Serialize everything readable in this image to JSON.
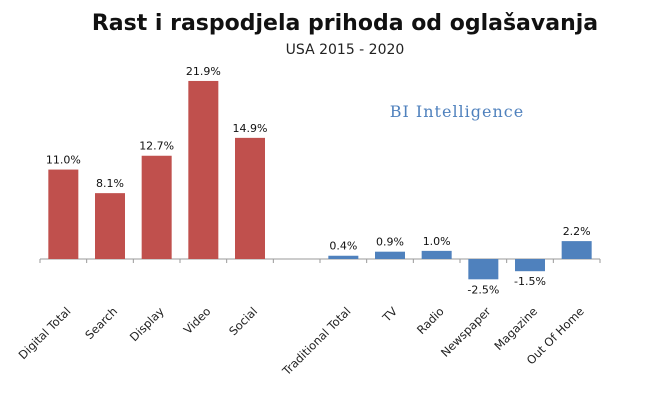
{
  "chart_data": {
    "type": "bar",
    "title": "Rast i raspodjela prihoda od oglašavanja",
    "subtitle": "USA 2015 - 2020",
    "brand": "BI Intelligence",
    "xlabel": "",
    "ylabel": "",
    "ylim": [
      -3.5,
      23
    ],
    "grid": false,
    "legend": "none",
    "colors": {
      "digital": "#c0504d",
      "traditional": "#4f81bd",
      "brand": "#4f81bd"
    },
    "categories": [
      "Digital Total",
      "Search",
      "Display",
      "Video",
      "Social",
      "",
      "Traditional Total",
      "TV",
      "Radio",
      "Newspaper",
      "Magazine",
      "Out Of Home"
    ],
    "values": [
      11.0,
      8.1,
      12.7,
      21.9,
      14.9,
      null,
      0.4,
      0.9,
      1.0,
      -2.5,
      -1.5,
      2.2
    ],
    "value_labels": [
      "11.0%",
      "8.1%",
      "12.7%",
      "21.9%",
      "14.9%",
      "",
      "0.4%",
      "0.9%",
      "1.0%",
      "-2.5%",
      "-1.5%",
      "2.2%"
    ],
    "groups": [
      "digital",
      "digital",
      "digital",
      "digital",
      "digital",
      "none",
      "traditional",
      "traditional",
      "traditional",
      "traditional",
      "traditional",
      "traditional"
    ]
  }
}
